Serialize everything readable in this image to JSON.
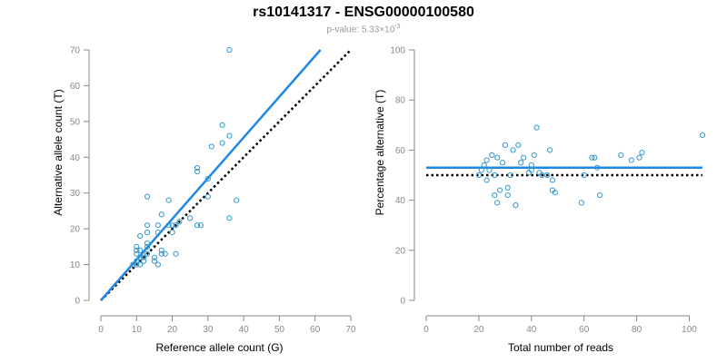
{
  "title": "rs10141317 - ENSG00000100580",
  "subtitle": {
    "prefix": "p-value: 5.33×10",
    "exponent": "-3"
  },
  "colors": {
    "points": "#3399cc",
    "fit_line": "#1e88e5",
    "reference_line": "#000000",
    "axis": "#888888",
    "tick_label": "#888888"
  },
  "chart_data": [
    {
      "type": "scatter",
      "title": "",
      "xlabel": "Reference allele count (G)",
      "ylabel": "Alternative allele count (T)",
      "xlim": [
        0,
        70
      ],
      "ylim": [
        0,
        70
      ],
      "xticks": [
        0,
        10,
        20,
        30,
        40,
        50,
        60,
        70
      ],
      "yticks": [
        0,
        10,
        20,
        30,
        40,
        50,
        60,
        70
      ],
      "grid": false,
      "points": [
        [
          9,
          10
        ],
        [
          10,
          10
        ],
        [
          10,
          11
        ],
        [
          10,
          13
        ],
        [
          10,
          14
        ],
        [
          10,
          15
        ],
        [
          11,
          10
        ],
        [
          11,
          12
        ],
        [
          11,
          14
        ],
        [
          11,
          18
        ],
        [
          12,
          11
        ],
        [
          12,
          12
        ],
        [
          13,
          13
        ],
        [
          13,
          15
        ],
        [
          13,
          16
        ],
        [
          13,
          19
        ],
        [
          13,
          21
        ],
        [
          13,
          29
        ],
        [
          15,
          11
        ],
        [
          15,
          12
        ],
        [
          16,
          10
        ],
        [
          16,
          19
        ],
        [
          16,
          21
        ],
        [
          17,
          13
        ],
        [
          17,
          14
        ],
        [
          17,
          24
        ],
        [
          18,
          13
        ],
        [
          19,
          28
        ],
        [
          19,
          21
        ],
        [
          20,
          19
        ],
        [
          20,
          21
        ],
        [
          21,
          13
        ],
        [
          21,
          21
        ],
        [
          22,
          22
        ],
        [
          25,
          23
        ],
        [
          27,
          21
        ],
        [
          27,
          36
        ],
        [
          27,
          37
        ],
        [
          28,
          21
        ],
        [
          30,
          29
        ],
        [
          30,
          34
        ],
        [
          31,
          43
        ],
        [
          34,
          44
        ],
        [
          34,
          49
        ],
        [
          36,
          23
        ],
        [
          36,
          46
        ],
        [
          36,
          70
        ],
        [
          38,
          28
        ]
      ],
      "fit_line": {
        "x": [
          0,
          61.5
        ],
        "y": [
          0,
          70
        ]
      },
      "reference_line": {
        "x": [
          0,
          70
        ],
        "y": [
          0,
          70
        ],
        "style": "dotted"
      }
    },
    {
      "type": "scatter",
      "title": "",
      "xlabel": "Total number of reads",
      "ylabel": "Percentage alternative (T)",
      "xlim": [
        0,
        105
      ],
      "ylim": [
        0,
        100
      ],
      "xticks": [
        0,
        20,
        40,
        60,
        80,
        100
      ],
      "yticks": [
        0,
        20,
        40,
        60,
        80,
        100
      ],
      "grid": false,
      "points": [
        [
          20,
          50
        ],
        [
          21,
          52
        ],
        [
          22,
          54
        ],
        [
          23,
          48
        ],
        [
          23,
          56
        ],
        [
          24,
          52
        ],
        [
          25,
          58
        ],
        [
          26,
          50
        ],
        [
          26,
          42
        ],
        [
          27,
          39
        ],
        [
          27,
          57
        ],
        [
          28,
          44
        ],
        [
          29,
          55
        ],
        [
          30,
          62
        ],
        [
          31,
          42
        ],
        [
          31,
          45
        ],
        [
          32,
          50
        ],
        [
          33,
          60
        ],
        [
          34,
          38
        ],
        [
          35,
          62
        ],
        [
          36,
          55
        ],
        [
          37,
          57
        ],
        [
          39,
          51
        ],
        [
          40,
          54
        ],
        [
          40,
          52
        ],
        [
          41,
          58
        ],
        [
          42,
          69
        ],
        [
          43,
          51
        ],
        [
          44,
          50
        ],
        [
          46,
          50
        ],
        [
          47,
          60
        ],
        [
          48,
          48
        ],
        [
          48,
          44
        ],
        [
          49,
          43
        ],
        [
          59,
          39
        ],
        [
          60,
          50
        ],
        [
          63,
          57
        ],
        [
          64,
          57
        ],
        [
          65,
          53
        ],
        [
          66,
          42
        ],
        [
          74,
          58
        ],
        [
          78,
          56
        ],
        [
          81,
          57
        ],
        [
          82,
          59
        ],
        [
          105,
          66
        ]
      ],
      "fit_line": {
        "x": [
          0,
          105
        ],
        "y": [
          53,
          53
        ]
      },
      "reference_line": {
        "x": [
          0,
          105
        ],
        "y": [
          50,
          50
        ],
        "style": "dotted"
      }
    }
  ]
}
